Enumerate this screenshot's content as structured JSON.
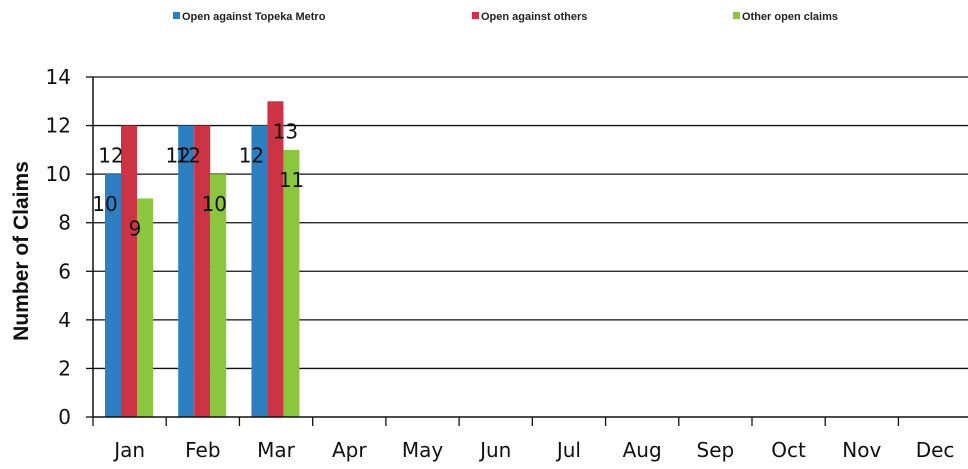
{
  "chart_data": {
    "type": "bar",
    "categories": [
      "Jan",
      "Feb",
      "Mar",
      "Apr",
      "May",
      "Jun",
      "Jul",
      "Aug",
      "Sep",
      "Oct",
      "Nov",
      "Dec"
    ],
    "series": [
      {
        "name": "Open against Topeka Metro",
        "color": "#2e7fc1",
        "values": [
          10,
          12,
          12,
          null,
          null,
          null,
          null,
          null,
          null,
          null,
          null,
          null
        ]
      },
      {
        "name": "Open against others",
        "color": "#cc3344",
        "values": [
          12,
          12,
          13,
          null,
          null,
          null,
          null,
          null,
          null,
          null,
          null,
          null
        ]
      },
      {
        "name": "Other open claims",
        "color": "#8cc63f",
        "values": [
          9,
          10,
          11,
          null,
          null,
          null,
          null,
          null,
          null,
          null,
          null,
          null
        ]
      }
    ],
    "ylabel": "Number of Claims",
    "ylim": [
      0,
      14
    ],
    "yticks": [
      0,
      2,
      4,
      6,
      8,
      10,
      12,
      14
    ],
    "grid": true,
    "legend_position": "top"
  }
}
